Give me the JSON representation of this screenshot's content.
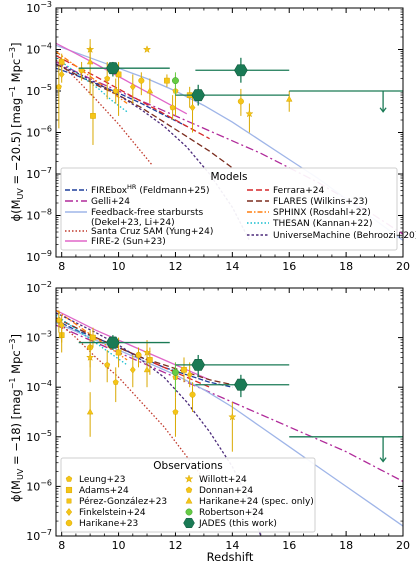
{
  "chart_data": [
    {
      "type": "line",
      "ylabel_main": "ϕ(M",
      "ylabel_sub": "UV",
      "ylabel_tail": " = −20.5)  [mag",
      "ylabel_units": "Mpc",
      "xlabel": "",
      "x_range": [
        7.8,
        20
      ],
      "y_log_range": [
        -9,
        -3
      ],
      "x_ticks": [
        "8",
        "10",
        "12",
        "14",
        "16",
        "18",
        "20"
      ],
      "y_ticks": [
        "10",
        "10",
        "10",
        "10",
        "10",
        "10",
        "10"
      ],
      "y_tick_exp": [
        "−9",
        "−8",
        "−7",
        "−6",
        "−5",
        "−4",
        "−3"
      ],
      "legend_title": "Models",
      "models": [
        {
          "name": "FIREbox",
          "sup": "HR",
          "tail": " (Feldmann+25)",
          "color": "#1f3f9c",
          "dash": "5,2",
          "x": [
            7.8,
            8.5,
            9.2,
            10,
            10.8,
            11.6,
            12.4
          ],
          "y": [
            -4.45,
            -4.62,
            -4.82,
            -5.05,
            -5.3,
            -5.58,
            -5.85
          ]
        },
        {
          "name": "Gelli+24",
          "color": "#b02a9a",
          "dash": "8,3,2,3",
          "x": [
            7.8,
            9,
            10,
            11,
            12,
            13,
            14,
            15,
            16,
            17,
            18,
            19,
            20
          ],
          "y": [
            -4.3,
            -4.7,
            -5.0,
            -5.3,
            -5.6,
            -5.9,
            -6.2,
            -6.5,
            -6.85,
            -7.2,
            -7.6,
            -8.0,
            -8.45
          ]
        },
        {
          "name": "Feedback-free starbursts",
          "name2": "(Dekel+23, Li+24)",
          "color": "#9fb5e8",
          "dash": "",
          "x": [
            7.8,
            9,
            10,
            11,
            12,
            13,
            14,
            15,
            16,
            17,
            18,
            19,
            20
          ],
          "y": [
            -3.9,
            -4.2,
            -4.45,
            -4.7,
            -5.0,
            -5.35,
            -5.75,
            -6.2,
            -6.65,
            -7.1,
            -7.6,
            -8.1,
            -8.6
          ]
        },
        {
          "name": "Santa Cruz SAM (Yung+24)",
          "color": "#c0392b",
          "dash": "1.5,2",
          "x": [
            7.8,
            8.5,
            9.2,
            10,
            10.6,
            11.2
          ],
          "y": [
            -4.25,
            -4.7,
            -5.2,
            -5.8,
            -6.3,
            -6.8
          ]
        },
        {
          "name": "FIRE-2 (Sun+23)",
          "color": "#e066c9",
          "dash": "",
          "x": [
            7.8,
            8.5,
            9.2,
            10,
            10.8,
            11.6,
            12.4
          ],
          "y": [
            -3.85,
            -4.1,
            -4.35,
            -4.65,
            -4.95,
            -5.25,
            -5.55
          ]
        },
        {
          "name": "Ferrara+24",
          "color": "#d62728",
          "dash": "6,3",
          "x": [
            7.8,
            8.5,
            9.2,
            10,
            10.8,
            11.6,
            12.4,
            13.2
          ],
          "y": [
            -4.15,
            -4.4,
            -4.65,
            -4.95,
            -5.25,
            -5.55,
            -5.85,
            -6.15
          ]
        },
        {
          "name": "FLARES (Wilkins+23)",
          "color": "#7b2d1f",
          "dash": "6,3",
          "x": [
            7.8,
            8.5,
            9.2,
            10,
            10.8,
            11.6,
            12.4,
            13.2,
            14
          ],
          "y": [
            -4.35,
            -4.6,
            -4.85,
            -5.1,
            -5.4,
            -5.75,
            -6.1,
            -6.45,
            -6.85
          ]
        },
        {
          "name": "SPHINX (Rosdahl+22)",
          "color": "#ff7f0e",
          "dash": "5,2,1.5,2",
          "x": [
            7.8,
            8.3,
            8.8,
            9.3,
            9.8,
            10.3
          ],
          "y": [
            -4.05,
            -4.3,
            -4.55,
            -4.8,
            -5.05,
            -5.3
          ]
        },
        {
          "name": "THESAN (Kannan+22)",
          "color": "#17becf",
          "dash": "1.5,2",
          "x": [
            7.8,
            8.3,
            8.8,
            9.3,
            9.8,
            10.3
          ],
          "y": [
            -4.2,
            -4.45,
            -4.7,
            -4.95,
            -5.25,
            -5.5
          ]
        },
        {
          "name": "UniverseMachine (Behroozi+20)",
          "color": "#4b2a7a",
          "dash": "2.5,2",
          "x": [
            7.8,
            8.5,
            9.2,
            10,
            10.8,
            11.6,
            12.4,
            13.2,
            14,
            14.6
          ],
          "y": [
            -4.35,
            -4.55,
            -4.8,
            -5.1,
            -5.45,
            -5.85,
            -6.35,
            -7.0,
            -7.8,
            -8.6
          ]
        }
      ],
      "obs": [
        {
          "x": 7.9,
          "y": -4.9,
          "lo": -5.9,
          "hi": -4.4
        },
        {
          "x": 8.0,
          "y": -4.3,
          "lo": -4.55,
          "hi": -4.1
        },
        {
          "x": 8.0,
          "y": -4.6,
          "lo": -4.8,
          "hi": -4.45
        },
        {
          "x": 8.7,
          "y": -4.5,
          "lo": -4.75,
          "hi": -4.3
        },
        {
          "x": 9.0,
          "y": -4.0,
          "lo": -4.3,
          "hi": -3.75
        },
        {
          "x": 9.0,
          "y": -4.3,
          "lo": -5.1,
          "hi": -3.95
        },
        {
          "x": 9.1,
          "y": -5.6,
          "lo": -6.3,
          "hi": -4.8
        },
        {
          "x": 9.6,
          "y": -4.7,
          "lo": -5.2,
          "hi": -4.3
        },
        {
          "x": 9.9,
          "y": -5.0,
          "lo": -5.3,
          "hi": -4.7
        },
        {
          "x": 10.0,
          "y": -4.6,
          "lo": -5.6,
          "hi": -4.3
        },
        {
          "x": 10.5,
          "y": -4.9,
          "lo": -5.3,
          "hi": -4.6
        },
        {
          "x": 10.8,
          "y": -4.75,
          "lo": -5.1,
          "hi": -4.55
        },
        {
          "x": 11.0,
          "y": -4.0,
          "lo": -4.0,
          "hi": -4.0
        },
        {
          "x": 11.1,
          "y": -5.0,
          "lo": -5.3,
          "hi": -4.7
        },
        {
          "x": 11.7,
          "y": -4.75,
          "lo": -4.9,
          "hi": -4.6
        },
        {
          "x": 11.9,
          "y": -5.4,
          "lo": -5.7,
          "hi": -5.1
        },
        {
          "x": 12.0,
          "y": -5.0,
          "lo": -5.6,
          "hi": -4.6
        },
        {
          "x": 12.5,
          "y": -5.1,
          "lo": -5.4,
          "hi": -4.9
        },
        {
          "x": 12.6,
          "y": -5.4,
          "lo": -6.0,
          "hi": -5.1
        },
        {
          "x": 14.3,
          "y": -5.25,
          "lo": -5.6,
          "hi": -4.95
        },
        {
          "x": 14.6,
          "y": -5.55,
          "lo": -6.0,
          "hi": -5.3
        },
        {
          "x": 16.0,
          "y": -5.2,
          "lo": -5.5,
          "hi": -5.0
        }
      ],
      "robertson": [
        {
          "x": 12.0,
          "y": -4.75,
          "lo": -5.1,
          "hi": -4.55
        }
      ],
      "jades": [
        {
          "x": 9.8,
          "y": -4.45,
          "lo": -4.65,
          "hi": -4.3,
          "xl": 8.6,
          "xh": 11.8
        },
        {
          "x": 12.8,
          "y": -5.1,
          "lo": -5.35,
          "hi": -4.85,
          "xl": 12.0,
          "xh": 16.0
        },
        {
          "x": 14.3,
          "y": -4.5,
          "lo": -4.8,
          "hi": -4.2,
          "xl": 12.7,
          "xh": 16.0
        }
      ],
      "upper_limit": {
        "x": 19.3,
        "y": -5.0,
        "xl": 16.0,
        "xh": 20.0,
        "arrow_to": -5.5
      }
    },
    {
      "type": "line",
      "ylabel_main": "ϕ(M",
      "ylabel_sub": "UV",
      "ylabel_tail": " = −18)  [mag",
      "ylabel_units": "Mpc",
      "xlabel": "Redshift",
      "x_range": [
        7.8,
        20
      ],
      "y_log_range": [
        -7,
        -2
      ],
      "x_ticks": [
        "8",
        "10",
        "12",
        "14",
        "16",
        "18",
        "20"
      ],
      "y_ticks": [
        "10",
        "10",
        "10",
        "10",
        "10",
        "10"
      ],
      "y_tick_exp": [
        "−7",
        "−6",
        "−5",
        "−4",
        "−3",
        "−2"
      ],
      "legend_title": "Observations",
      "observations": [
        {
          "name": "Leung+23",
          "marker": "pentagon"
        },
        {
          "name": "Adams+24",
          "marker": "square"
        },
        {
          "name": "Pérez-González+23",
          "marker": "square-sm"
        },
        {
          "name": "Finkelstein+24",
          "marker": "star4"
        },
        {
          "name": "Harikane+23",
          "marker": "circle"
        },
        {
          "name": "Willott+24",
          "marker": "star"
        },
        {
          "name": "Donnan+24",
          "marker": "pentagon"
        },
        {
          "name": "Harikane+24 (spec. only)",
          "marker": "triangle"
        },
        {
          "name": "Robertson+24",
          "marker": "circle-green"
        },
        {
          "name": "JADES (this work)",
          "marker": "hexagon"
        }
      ],
      "models": [
        {
          "name": "FIREbox",
          "color": "#1f3f9c",
          "dash": "5,2",
          "x": [
            7.8,
            8.5,
            9.2,
            10,
            10.8,
            11.6,
            12.4,
            13.2,
            14
          ],
          "y": [
            -2.65,
            -2.85,
            -3.0,
            -3.2,
            -3.4,
            -3.6,
            -3.75,
            -3.9,
            -4.0
          ]
        },
        {
          "name": "Gelli+24",
          "color": "#b02a9a",
          "dash": "8,3,2,3",
          "x": [
            7.8,
            9,
            10,
            11,
            12,
            13,
            14,
            15,
            16,
            17,
            18,
            19,
            20
          ],
          "y": [
            -2.75,
            -3.05,
            -3.3,
            -3.55,
            -3.8,
            -4.05,
            -4.3,
            -4.55,
            -4.8,
            -5.05,
            -5.3,
            -5.6,
            -5.9
          ]
        },
        {
          "name": "Feedback-free starbursts",
          "color": "#9fb5e8",
          "dash": "",
          "x": [
            7.8,
            9,
            10,
            11,
            12,
            13,
            14,
            15,
            16,
            17,
            18,
            19,
            20
          ],
          "y": [
            -2.7,
            -3.0,
            -3.25,
            -3.5,
            -3.75,
            -4.05,
            -4.4,
            -4.8,
            -5.2,
            -5.6,
            -6.0,
            -6.4,
            -6.8
          ]
        },
        {
          "name": "Santa Cruz SAM",
          "color": "#c0392b",
          "dash": "1.5,2",
          "x": [
            7.8,
            8.5,
            9.2,
            10,
            10.8,
            11.6,
            12.4,
            13.2
          ],
          "y": [
            -2.65,
            -3.0,
            -3.4,
            -3.8,
            -4.3,
            -4.8,
            -5.4,
            -6.0
          ]
        },
        {
          "name": "FIRE-2",
          "color": "#e066c9",
          "dash": "",
          "x": [
            7.8,
            8.5,
            9.2,
            10,
            10.8,
            11.6,
            12.4,
            13.2
          ],
          "y": [
            -2.45,
            -2.65,
            -2.85,
            -3.05,
            -3.25,
            -3.45,
            -3.65,
            -3.85
          ]
        },
        {
          "name": "Ferrara+24",
          "color": "#d62728",
          "dash": "6,3",
          "x": [
            7.8,
            8.5,
            9.2,
            10,
            10.8,
            11.6,
            12.4,
            13.2
          ],
          "y": [
            -2.6,
            -2.8,
            -3.0,
            -3.2,
            -3.4,
            -3.6,
            -3.8,
            -4.0
          ]
        },
        {
          "name": "FLARES",
          "color": "#7b2d1f",
          "dash": "6,3",
          "x": [
            7.8,
            8.5,
            9.2,
            10,
            10.8,
            11.6,
            12.4,
            13.2,
            14
          ],
          "y": [
            -2.6,
            -2.8,
            -3.0,
            -3.2,
            -3.4,
            -3.55,
            -3.7,
            -3.85,
            -3.95
          ]
        },
        {
          "name": "SPHINX",
          "color": "#ff7f0e",
          "dash": "5,2,1.5,2",
          "x": [
            7.8,
            8.3,
            8.8,
            9.3,
            9.8,
            10.3
          ],
          "y": [
            -2.45,
            -2.65,
            -2.85,
            -3.05,
            -3.25,
            -3.45
          ]
        },
        {
          "name": "THESAN",
          "color": "#17becf",
          "dash": "1.5,2",
          "x": [
            7.8,
            8.3,
            8.8,
            9.3,
            9.8,
            10.3
          ],
          "y": [
            -2.55,
            -2.75,
            -2.95,
            -3.15,
            -3.35,
            -3.55
          ]
        },
        {
          "name": "UniverseMachine",
          "color": "#4b2a7a",
          "dash": "2.5,2",
          "x": [
            7.8,
            8.5,
            9.2,
            10,
            10.8,
            11.6,
            12.4,
            13.2,
            14,
            14.6,
            15
          ],
          "y": [
            -2.5,
            -2.7,
            -2.9,
            -3.15,
            -3.45,
            -3.8,
            -4.3,
            -4.9,
            -5.6,
            -6.3,
            -7.0
          ]
        }
      ],
      "obs": [
        {
          "x": 7.9,
          "y": -2.65,
          "lo": -2.9,
          "hi": -2.45
        },
        {
          "x": 8.0,
          "y": -2.95,
          "lo": -3.3,
          "hi": -2.8
        },
        {
          "x": 8.0,
          "y": -2.75,
          "lo": -3.1,
          "hi": -2.55
        },
        {
          "x": 9.0,
          "y": -3.2,
          "lo": -3.6,
          "hi": -2.85
        },
        {
          "x": 9.0,
          "y": -3.4,
          "lo": -3.9,
          "hi": -3.1
        },
        {
          "x": 9.0,
          "y": -4.5,
          "lo": -5.0,
          "hi": -4.1
        },
        {
          "x": 9.1,
          "y": -3.0,
          "lo": -3.2,
          "hi": -2.8
        },
        {
          "x": 9.6,
          "y": -3.55,
          "lo": -3.9,
          "hi": -3.25
        },
        {
          "x": 9.9,
          "y": -3.9,
          "lo": -4.3,
          "hi": -3.6
        },
        {
          "x": 10.0,
          "y": -3.3,
          "lo": -3.6,
          "hi": -3.0
        },
        {
          "x": 10.5,
          "y": -3.65,
          "lo": -4.0,
          "hi": -3.35
        },
        {
          "x": 10.7,
          "y": -3.35,
          "lo": -3.6,
          "hi": -3.2
        },
        {
          "x": 11.0,
          "y": -3.3,
          "lo": -3.6,
          "hi": -3.05
        },
        {
          "x": 11.0,
          "y": -3.65,
          "lo": -4.0,
          "hi": -3.4
        },
        {
          "x": 11.1,
          "y": -3.45,
          "lo": -3.75,
          "hi": -3.2
        },
        {
          "x": 12.0,
          "y": -3.8,
          "lo": -4.2,
          "hi": -3.5
        },
        {
          "x": 12.0,
          "y": -4.5,
          "lo": -5.0,
          "hi": -4.2
        },
        {
          "x": 12.3,
          "y": -3.65,
          "lo": -3.9,
          "hi": -3.4
        },
        {
          "x": 12.5,
          "y": -3.75,
          "lo": -4.0,
          "hi": -3.5
        },
        {
          "x": 12.6,
          "y": -4.15,
          "lo": -4.5,
          "hi": -3.9
        },
        {
          "x": 14.0,
          "y": -4.6,
          "lo": -5.3,
          "hi": -4.3
        }
      ],
      "robertson": [
        {
          "x": 12.0,
          "y": -3.7,
          "lo": -4.1,
          "hi": -3.5
        }
      ],
      "jades": [
        {
          "x": 9.8,
          "y": -3.1,
          "lo": -3.25,
          "hi": -2.95,
          "xl": 8.6,
          "xh": 11.8
        },
        {
          "x": 12.8,
          "y": -3.55,
          "lo": -3.8,
          "hi": -3.35,
          "xl": 12.0,
          "xh": 16.0
        },
        {
          "x": 14.3,
          "y": -3.95,
          "lo": -4.2,
          "hi": -3.75,
          "xl": 12.7,
          "xh": 16.0
        }
      ],
      "upper_limit": {
        "x": 19.3,
        "y": -5.0,
        "xl": 16.0,
        "xh": 20.0,
        "arrow_to": -5.5
      }
    }
  ]
}
